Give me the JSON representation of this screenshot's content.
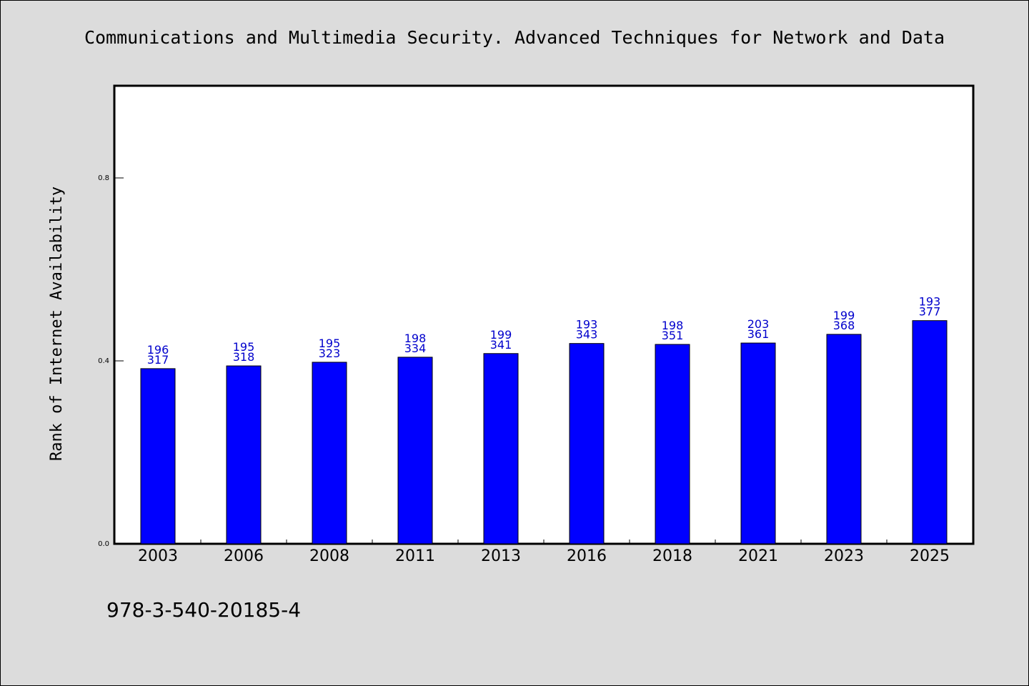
{
  "chart_data": {
    "type": "bar",
    "title": "Communications and Multimedia Security. Advanced Techniques for Network and Data",
    "xlabel": "",
    "ylabel": "Rank of Internet Availability",
    "ylim": [
      0,
      1.0
    ],
    "yticks": [
      "0.0",
      "0.4",
      "0.8"
    ],
    "ytick_values": [
      0.0,
      0.4,
      0.8
    ],
    "categories": [
      "2003",
      "2006",
      "2008",
      "2011",
      "2013",
      "2016",
      "2018",
      "2021",
      "2023",
      "2025"
    ],
    "values": [
      0.383,
      0.389,
      0.397,
      0.408,
      0.416,
      0.438,
      0.436,
      0.439,
      0.458,
      0.488
    ],
    "label_top": [
      "196",
      "195",
      "195",
      "198",
      "199",
      "193",
      "198",
      "203",
      "199",
      "193"
    ],
    "label_bottom": [
      "317",
      "318",
      "323",
      "334",
      "341",
      "343",
      "351",
      "361",
      "368",
      "377"
    ],
    "bar_color": "#0000ff",
    "label_color": "#0000cc",
    "grid": false,
    "legend": "none",
    "footer": "978-3-540-20185-4"
  }
}
